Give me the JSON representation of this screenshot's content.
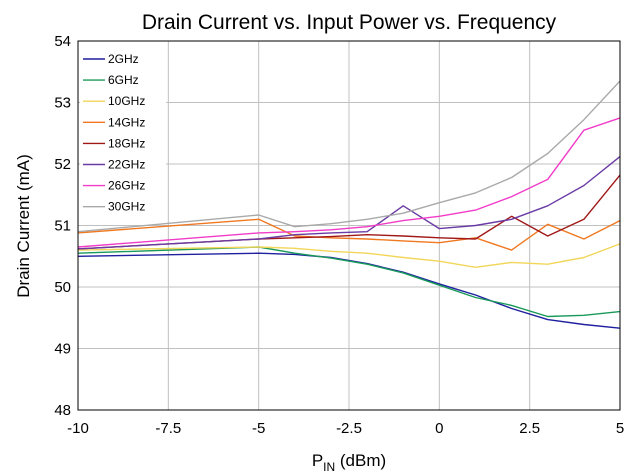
{
  "chart_data": {
    "type": "line",
    "title": "Drain Current vs. Input Power vs. Frequency",
    "xlabel": "P",
    "xlabel_sub": "IN",
    "xlabel_unit": " (dBm)",
    "ylabel": "Drain Current (mA)",
    "xlim": [
      -10,
      5
    ],
    "ylim": [
      48,
      54
    ],
    "xticks": [
      -10,
      -7.5,
      -5,
      -2.5,
      0,
      2.5,
      5
    ],
    "yticks": [
      48,
      49,
      50,
      51,
      52,
      53,
      54
    ],
    "grid": true,
    "legend_position": "top-left",
    "series": [
      {
        "name": "2GHz",
        "color": "#1f1f9f",
        "x": [
          -10,
          -5,
          -4,
          -3,
          -2,
          -1,
          0,
          1,
          2,
          3,
          4,
          5
        ],
        "y": [
          50.5,
          50.55,
          50.53,
          50.48,
          50.38,
          50.24,
          50.05,
          49.87,
          49.65,
          49.47,
          49.39,
          49.33
        ]
      },
      {
        "name": "6GHz",
        "color": "#1a9a5a",
        "x": [
          -10,
          -5,
          -4,
          -3,
          -2,
          -1,
          0,
          1,
          2,
          3,
          4,
          5
        ],
        "y": [
          50.55,
          50.65,
          50.55,
          50.47,
          50.37,
          50.23,
          50.03,
          49.83,
          49.7,
          49.52,
          49.54,
          49.6
        ]
      },
      {
        "name": "10GHz",
        "color": "#f2d65a",
        "x": [
          -10,
          -5,
          -4,
          -3,
          -2,
          -1,
          0,
          1,
          2,
          3,
          4,
          5
        ],
        "y": [
          50.6,
          50.65,
          50.63,
          50.58,
          50.55,
          50.48,
          50.42,
          50.32,
          50.4,
          50.37,
          50.48,
          50.7
        ]
      },
      {
        "name": "14GHz",
        "color": "#f07820",
        "x": [
          -10,
          -5,
          -4,
          -3,
          -2,
          -1,
          0,
          1,
          2,
          3,
          4,
          5
        ],
        "y": [
          50.88,
          51.1,
          50.83,
          50.8,
          50.78,
          50.75,
          50.72,
          50.8,
          50.6,
          51.02,
          50.78,
          51.08
        ]
      },
      {
        "name": "18GHz",
        "color": "#a01818",
        "x": [
          -10,
          -5,
          -4,
          -3,
          -2,
          -1,
          0,
          1,
          2,
          3,
          4,
          5
        ],
        "y": [
          50.62,
          50.78,
          50.8,
          50.82,
          50.85,
          50.83,
          50.8,
          50.78,
          51.15,
          50.83,
          51.1,
          51.82
        ]
      },
      {
        "name": "22GHz",
        "color": "#6a3ba5",
        "x": [
          -10,
          -5,
          -4,
          -3,
          -2,
          -1,
          0,
          1,
          2,
          3,
          4,
          5
        ],
        "y": [
          50.62,
          50.78,
          50.85,
          50.88,
          50.9,
          51.32,
          50.95,
          51.0,
          51.1,
          51.32,
          51.65,
          52.12
        ]
      },
      {
        "name": "26GHz",
        "color": "#f03cc8",
        "x": [
          -10,
          -5,
          -4,
          -3,
          -2,
          -1,
          0,
          1,
          2,
          3,
          4,
          5
        ],
        "y": [
          50.65,
          50.88,
          50.9,
          50.93,
          50.98,
          51.08,
          51.15,
          51.25,
          51.47,
          51.75,
          52.55,
          52.75
        ]
      },
      {
        "name": "30GHz",
        "color": "#a9a9a9",
        "x": [
          -10,
          -5,
          -4,
          -3,
          -2,
          -1,
          0,
          1,
          2,
          3,
          4,
          5
        ],
        "y": [
          50.9,
          51.17,
          50.98,
          51.03,
          51.1,
          51.2,
          51.37,
          51.53,
          51.78,
          52.17,
          52.72,
          53.35
        ]
      }
    ]
  }
}
